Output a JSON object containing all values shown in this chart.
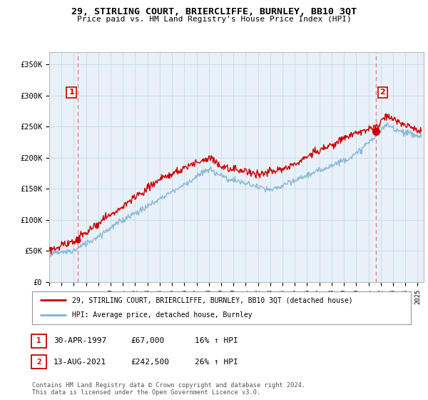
{
  "title": "29, STIRLING COURT, BRIERCLIFFE, BURNLEY, BB10 3QT",
  "subtitle": "Price paid vs. HM Land Registry's House Price Index (HPI)",
  "ylabel_ticks": [
    "£0",
    "£50K",
    "£100K",
    "£150K",
    "£200K",
    "£250K",
    "£300K",
    "£350K"
  ],
  "ytick_values": [
    0,
    50000,
    100000,
    150000,
    200000,
    250000,
    300000,
    350000
  ],
  "ylim": [
    0,
    370000
  ],
  "xlim_start": 1995.0,
  "xlim_end": 2025.5,
  "sale1_date": 1997.33,
  "sale1_price": 67000,
  "sale1_label": "1",
  "sale2_date": 2021.62,
  "sale2_price": 242500,
  "sale2_label": "2",
  "line_color_red": "#cc0000",
  "line_color_blue": "#7fb3d3",
  "vline_color": "#e88080",
  "grid_color": "#d0dce8",
  "bg_color": "#e8f0f8",
  "legend_line1": "29, STIRLING COURT, BRIERCLIFFE, BURNLEY, BB10 3QT (detached house)",
  "legend_line2": "HPI: Average price, detached house, Burnley",
  "table_row1": [
    "1",
    "30-APR-1997",
    "£67,000",
    "16% ↑ HPI"
  ],
  "table_row2": [
    "2",
    "13-AUG-2021",
    "£242,500",
    "26% ↑ HPI"
  ],
  "footnote": "Contains HM Land Registry data © Crown copyright and database right 2024.\nThis data is licensed under the Open Government Licence v3.0.",
  "xtick_years": [
    1995,
    1996,
    1997,
    1998,
    1999,
    2000,
    2001,
    2002,
    2003,
    2004,
    2005,
    2006,
    2007,
    2008,
    2009,
    2010,
    2011,
    2012,
    2013,
    2014,
    2015,
    2016,
    2017,
    2018,
    2019,
    2020,
    2021,
    2022,
    2023,
    2024,
    2025
  ]
}
